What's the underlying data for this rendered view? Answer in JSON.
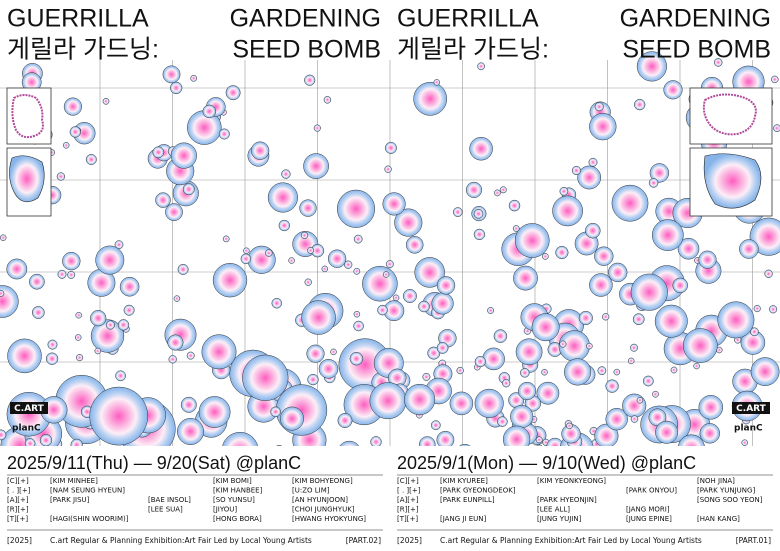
{
  "panels": [
    {
      "title_line1": [
        "GUERRILLA",
        "GARDENING"
      ],
      "title_line2": [
        "게릴라 가드닝:",
        "SEED BOMB"
      ],
      "logos": [
        "C.ART",
        "planC"
      ],
      "dates": "2025/9/11(Thu) — 9/20(Sat) @planC",
      "row_labels": [
        "[C][+]",
        "[ . ][+]",
        "[A][+]",
        "[R][+]",
        "[T][+]"
      ],
      "names": [
        [
          "[KIM MINHEE]",
          null,
          "[KIM BOMI]",
          "[KIM BOHYEONG]"
        ],
        [
          "[NAM SEUNG HYEUN]",
          null,
          "[KIM HANBEE]",
          "[U:ZO LIM]"
        ],
        [
          "[PARK JISU]",
          "[BAE INSOL]",
          "[SO YUNSU]",
          "[AN HYUNJOON]"
        ],
        [
          null,
          "[LEE SUA]",
          "[JIYOU]",
          "[CHOI JUNGHYUK]"
        ],
        [
          "[HAGI(SHIN WOORIM)]",
          null,
          "[HONG BORA]",
          "[HWANG HYOKYUNG]"
        ]
      ],
      "footer": [
        "[2025]",
        "C.art Regular & Planning Exhibition:Art Fair Led by Local Young Artists",
        "[PART.02]"
      ]
    },
    {
      "title_line1": [
        "GUERRILLA",
        "GARDENING"
      ],
      "title_line2": [
        "게릴라 가드닝:",
        "SEED BOMB"
      ],
      "logos": [
        "C.ART",
        "planC"
      ],
      "dates": "2025/9/1(Mon) — 9/10(Wed) @planC",
      "row_labels": [
        "[C][+]",
        "[ . ][+]",
        "[A][+]",
        "[R][+]",
        "[T][+]"
      ],
      "names": [
        [
          "[KIM KYUREE]",
          "[KIM YEONKYEONG]",
          null,
          "[NOH JINA]"
        ],
        [
          "[PARK GYEONGDEOK]",
          null,
          "[PARK ONYOU]",
          "[PARK YUNJUNG]"
        ],
        [
          "[PARK EUNPILL]",
          "[PARK HYEONJIN]",
          null,
          "[SONG SOO YEON]"
        ],
        [
          null,
          "[LEE ALL]",
          "[JANG MORI]",
          null
        ],
        [
          "[JANG JI EUN]",
          "[JUNG YUJIN]",
          "[JUNG EPINE]",
          "[HAN KANG]"
        ]
      ],
      "footer": [
        "[2025]",
        "C.art Regular & Planning Exhibition:Art Fair Led by Local Young Artists",
        "[PART.01]"
      ]
    }
  ]
}
